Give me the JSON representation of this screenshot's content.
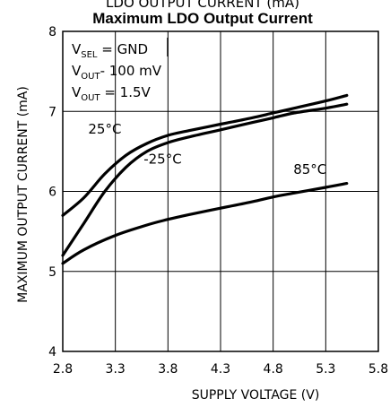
{
  "chart_data": {
    "type": "line",
    "top_title": "LDO OUTPUT CURRENT (mA)",
    "title": "Maximum LDO Output Current",
    "xlabel": "SUPPLY VOLTAGE (V)",
    "ylabel": "MAXIMUM OUTPUT CURRENT (mA)",
    "xlim": [
      2.8,
      5.8
    ],
    "ylim": [
      4,
      8
    ],
    "xticks": [
      2.8,
      3.3,
      3.8,
      4.3,
      4.8,
      5.3,
      5.8
    ],
    "xtick_labels": [
      "2.8",
      "3.3",
      "3.8",
      "4.3",
      "4.8",
      "5.3",
      "5.8"
    ],
    "yticks": [
      4,
      5,
      6,
      7,
      8
    ],
    "ytick_labels": [
      "4",
      "5",
      "6",
      "7",
      "8"
    ],
    "grid": true,
    "conditions": {
      "line1": {
        "main": "V",
        "sub": "SEL",
        "rest": " = GND"
      },
      "line2": {
        "main": "V",
        "sub": "OUT",
        "rest": "- 100 mV"
      },
      "line3": {
        "main": "V",
        "sub": "OUT",
        "rest": " = 1.5V"
      }
    },
    "series": [
      {
        "name": "25°C",
        "x": [
          2.8,
          3.0,
          3.2,
          3.4,
          3.6,
          3.8,
          4.0,
          4.3,
          4.6,
          4.8,
          5.0,
          5.3,
          5.5
        ],
        "y": [
          5.7,
          5.92,
          6.22,
          6.45,
          6.6,
          6.7,
          6.76,
          6.84,
          6.92,
          6.98,
          7.04,
          7.13,
          7.2
        ]
      },
      {
        "name": "-25°C",
        "x": [
          2.8,
          3.0,
          3.2,
          3.4,
          3.6,
          3.8,
          4.0,
          4.3,
          4.6,
          4.8,
          5.0,
          5.3,
          5.5
        ],
        "y": [
          5.2,
          5.6,
          6.0,
          6.3,
          6.5,
          6.61,
          6.68,
          6.77,
          6.86,
          6.92,
          6.98,
          7.04,
          7.09
        ]
      },
      {
        "name": "85°C",
        "x": [
          2.8,
          3.0,
          3.3,
          3.6,
          3.8,
          4.0,
          4.3,
          4.6,
          4.8,
          5.0,
          5.3,
          5.5
        ],
        "y": [
          5.1,
          5.27,
          5.45,
          5.58,
          5.65,
          5.71,
          5.79,
          5.87,
          5.93,
          5.98,
          6.05,
          6.1
        ]
      }
    ],
    "series_label_anchors": [
      {
        "label": "25°C",
        "x": 3.2,
        "y": 6.72
      },
      {
        "label": "-25°C",
        "x": 3.75,
        "y": 6.35
      },
      {
        "label": "85°C",
        "x": 5.15,
        "y": 6.22
      }
    ],
    "colors": {
      "line": "#000000",
      "grid": "#000000"
    }
  }
}
